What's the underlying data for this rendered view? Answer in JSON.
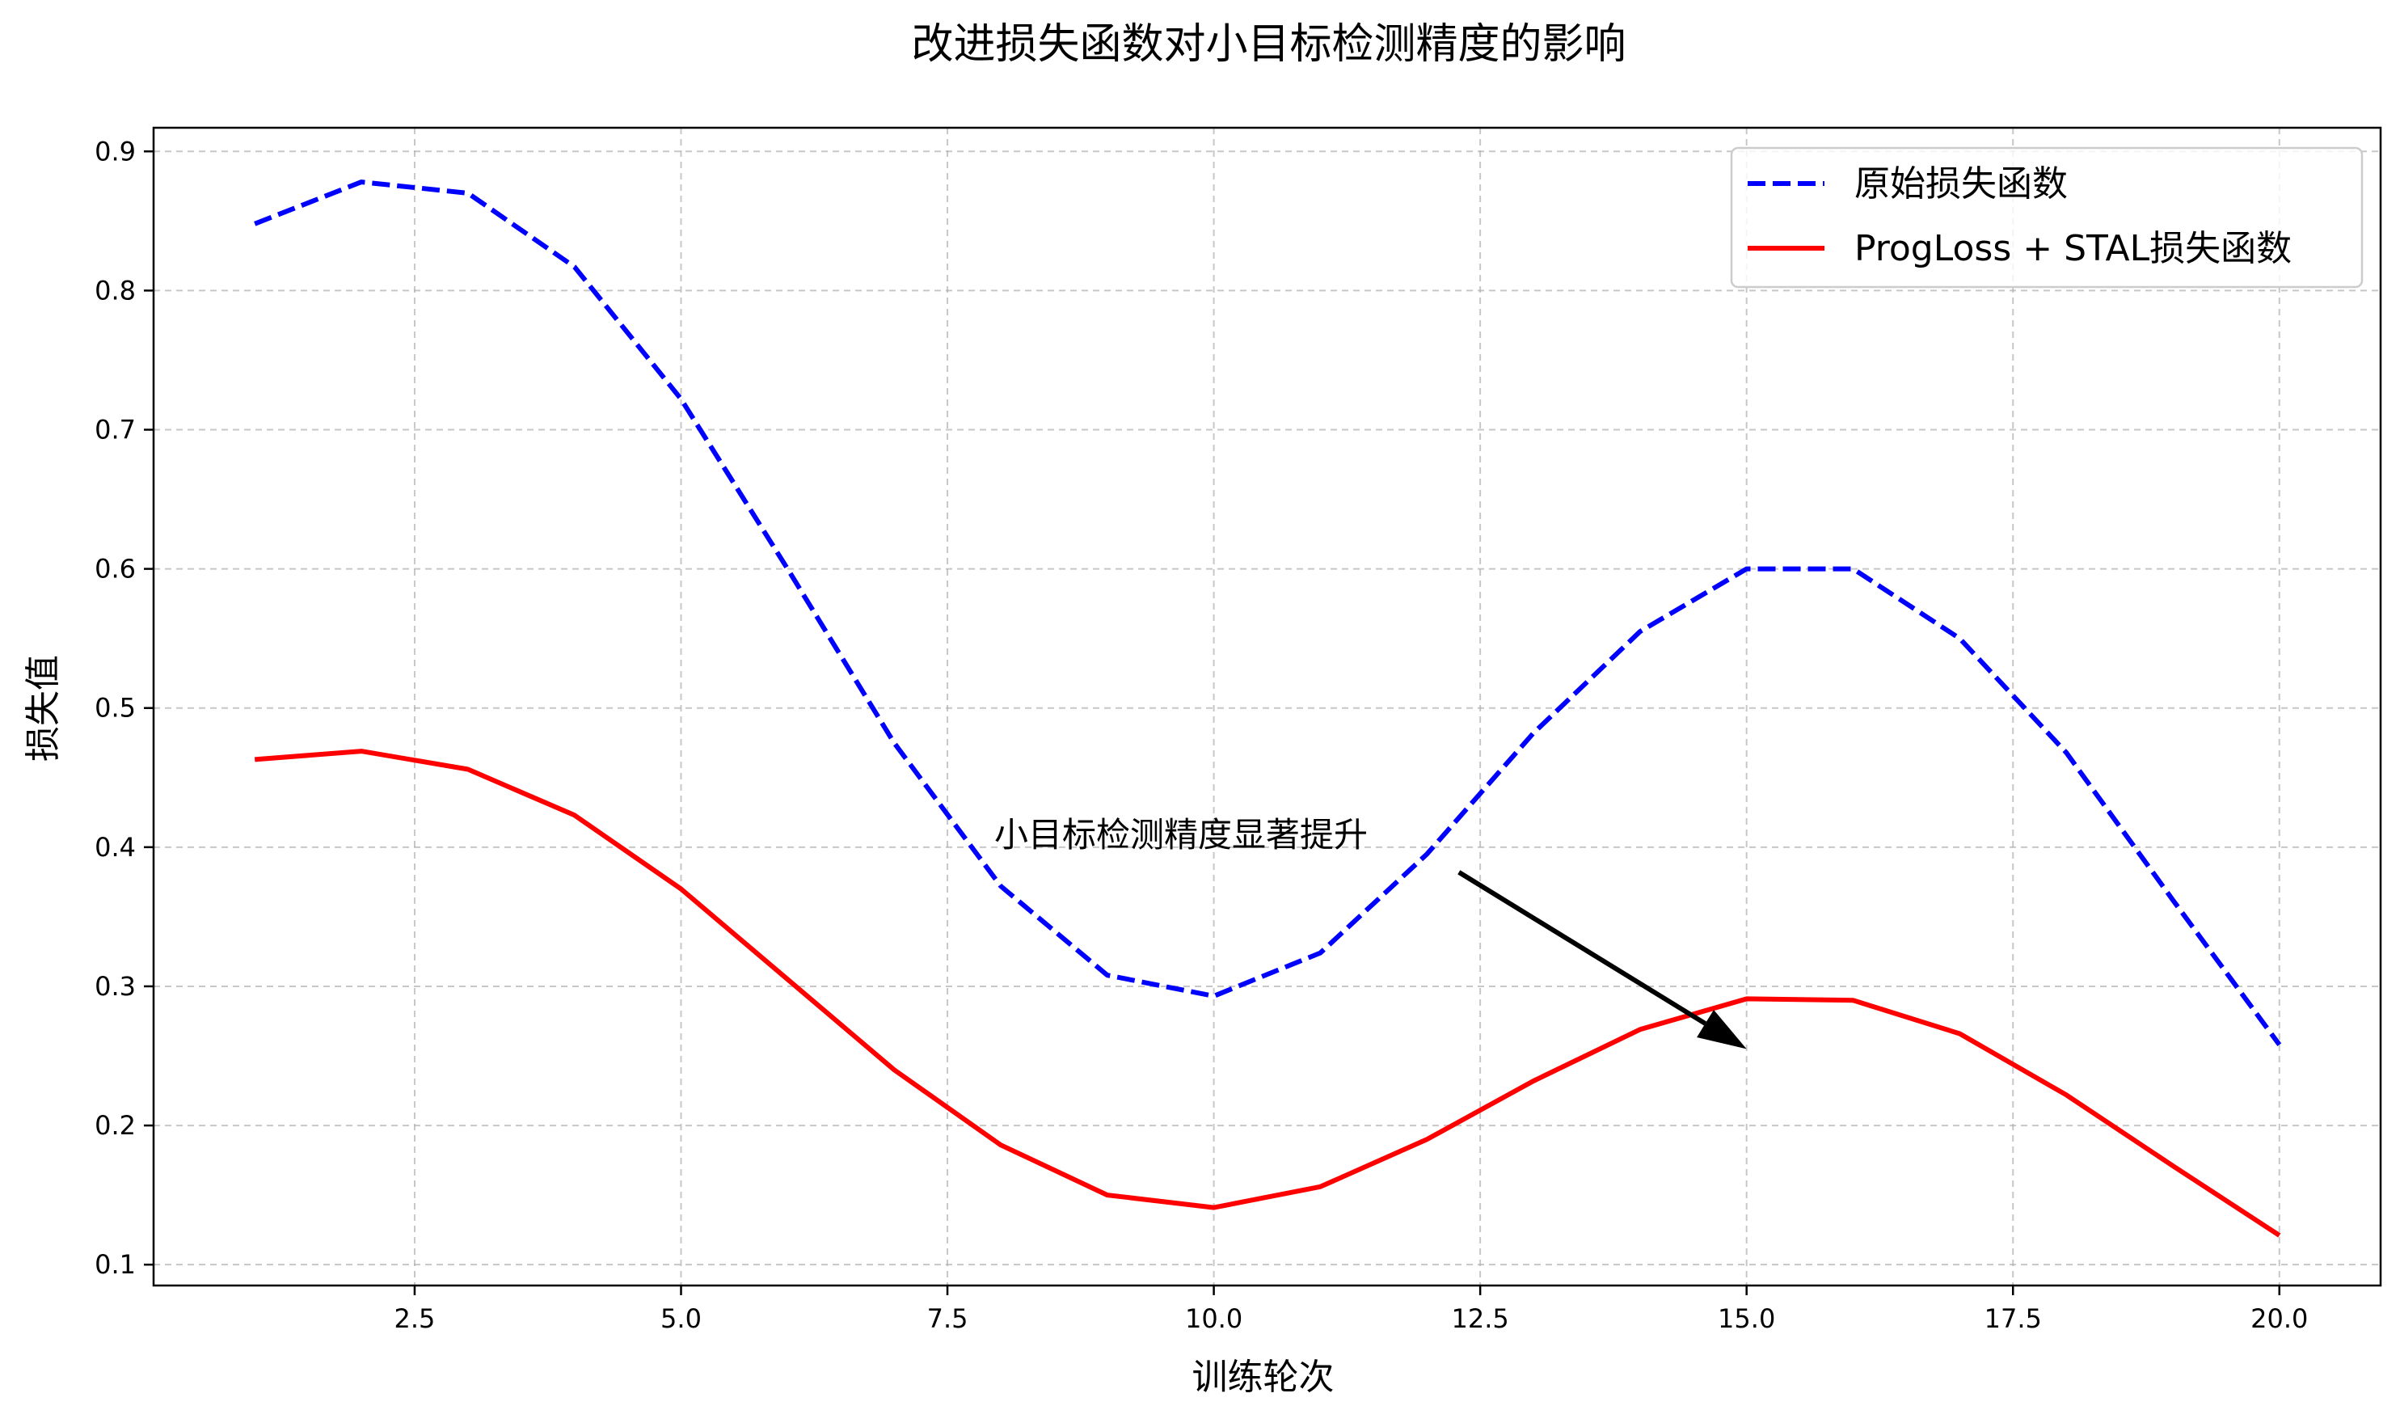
{
  "chart_data": {
    "type": "line",
    "title": "改进损失函数对小目标检测精度的影响",
    "xlabel": "训练轮次",
    "ylabel": "损失值",
    "xlim": [
      0.05,
      20.95
    ],
    "ylim": [
      0.085,
      0.917
    ],
    "xticks": [
      2.5,
      5.0,
      7.5,
      10.0,
      12.5,
      15.0,
      17.5,
      20.0
    ],
    "yticks": [
      0.1,
      0.2,
      0.3,
      0.4,
      0.5,
      0.6,
      0.7,
      0.8,
      0.9
    ],
    "grid": true,
    "legend_position": "top-right",
    "x": [
      1,
      2,
      3,
      4,
      5,
      6,
      7,
      8,
      9,
      10,
      11,
      12,
      13,
      14,
      15,
      16,
      17,
      18,
      19,
      20
    ],
    "series": [
      {
        "name": "原始损失函数",
        "color": "#0000ff",
        "style": "dashed",
        "values": [
          0.848,
          0.878,
          0.87,
          0.817,
          0.722,
          0.6,
          0.475,
          0.372,
          0.308,
          0.293,
          0.324,
          0.395,
          0.482,
          0.555,
          0.6,
          0.6,
          0.55,
          0.468,
          0.362,
          0.258
        ]
      },
      {
        "name": "ProgLoss + STAL损失函数",
        "color": "#ff0000",
        "style": "solid",
        "values": [
          0.463,
          0.469,
          0.456,
          0.423,
          0.37,
          0.305,
          0.24,
          0.186,
          0.15,
          0.141,
          0.156,
          0.19,
          0.232,
          0.269,
          0.291,
          0.29,
          0.266,
          0.222,
          0.171,
          0.121
        ]
      }
    ],
    "annotation": {
      "text": "小目标检测精度显著提升",
      "text_x": 8.0,
      "text_y": 0.4,
      "arrow_from": [
        12.3,
        0.382
      ],
      "arrow_to": [
        15.0,
        0.255
      ]
    }
  }
}
